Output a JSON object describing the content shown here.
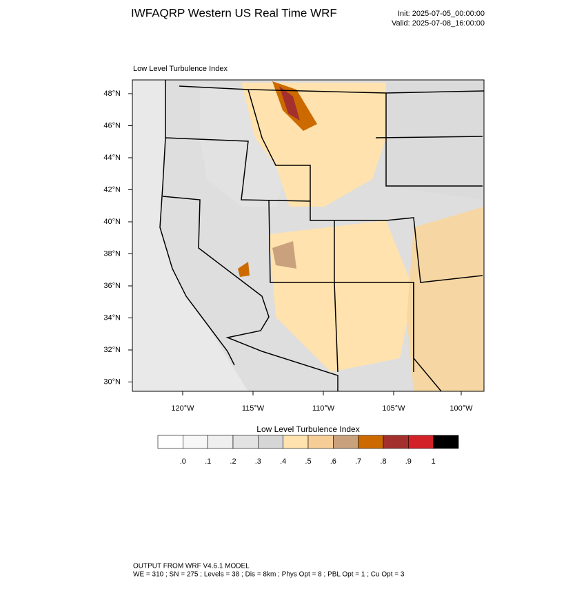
{
  "header": {
    "title": "IWFAQRP Western US Real Time WRF",
    "init": "Init: 2025-07-05_00:00:00",
    "valid": "Valid: 2025-07-08_16:00:00"
  },
  "map": {
    "label": "Low Level Turbulence Index",
    "lat_labels": [
      "48°N",
      "46°N",
      "44°N",
      "42°N",
      "40°N",
      "38°N",
      "36°N",
      "34°N",
      "32°N",
      "30°N"
    ],
    "lon_labels": [
      "120°W",
      "115°W",
      "110°W",
      "105°W",
      "100°W"
    ]
  },
  "colorbar": {
    "title": "Low Level Turbulence Index",
    "colors": [
      "#ffffff",
      "#f7f7f7",
      "#efefef",
      "#e3e3e3",
      "#d6d6d6",
      "#ffe2ad",
      "#f6cd96",
      "#c9a27d",
      "#cc6a00",
      "#a3302c",
      "#d32128",
      "#000000"
    ],
    "labels": [
      ".0",
      ".1",
      ".2",
      ".3",
      ".4",
      ".5",
      ".6",
      ".7",
      ".8",
      ".9",
      "1"
    ]
  },
  "footer": {
    "model": "OUTPUT FROM WRF V4.6.1 MODEL",
    "settings": "WE = 310 ; SN = 275 ; Levels = 38 ; Dis = 8km ; Phys Opt = 8 ; PBL Opt = 1 ; Cu Opt = 3"
  }
}
